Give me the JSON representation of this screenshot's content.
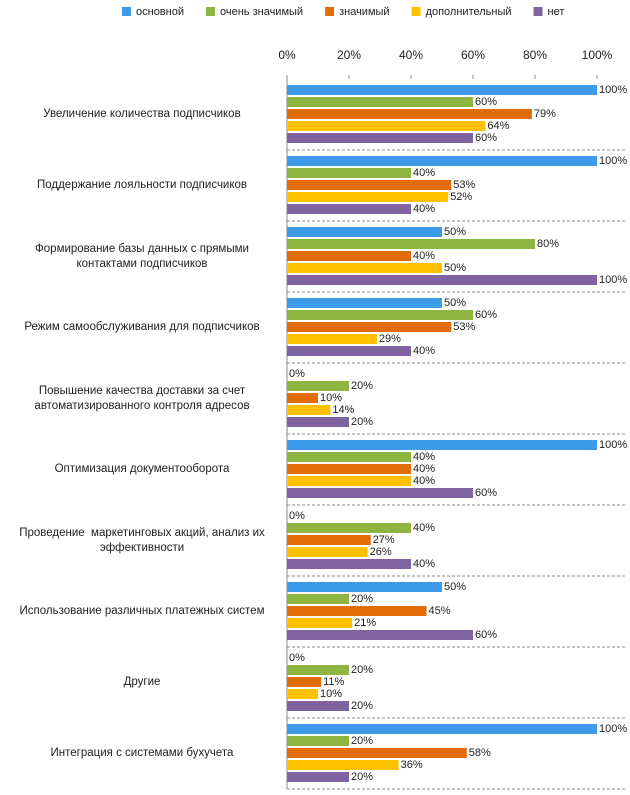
{
  "chart_data": {
    "type": "bar",
    "orientation": "horizontal",
    "categories": [
      "Увеличение количества подписчиков",
      "Поддержание лояльности подписчиков",
      "Формирование базы данных с прямыми контактами подписчиков",
      "Режим самообслуживания для подписчиков",
      "Повышение качества доставки за счет автоматизированного контроля адресов",
      "Оптимизация документооборота",
      "Проведение  маркетинговых акций, анализ их эффективности",
      "Использование различных платежных систем",
      "Другие",
      "Интеграция с системами бухучета"
    ],
    "series": [
      {
        "name": "основной",
        "color": "#3e9be9",
        "values": [
          100,
          100,
          50,
          50,
          0,
          100,
          0,
          50,
          0,
          100
        ],
        "value_labels": [
          "100%",
          "100%",
          "50%",
          "50%",
          "0%",
          "100%",
          "0%",
          "50%",
          "0%",
          "100%"
        ]
      },
      {
        "name": "очень значимый",
        "color": "#8db53f",
        "values": [
          60,
          40,
          80,
          60,
          20,
          40,
          40,
          20,
          20,
          20
        ],
        "value_labels": [
          "60%",
          "40%",
          "80%",
          "60%",
          "20%",
          "40%",
          "40%",
          "20%",
          "20%",
          "20%"
        ]
      },
      {
        "name": "значимый",
        "color": "#e36c0a",
        "values": [
          79,
          53,
          40,
          53,
          10,
          40,
          27,
          45,
          11,
          58
        ],
        "value_labels": [
          "79%",
          "53%",
          "40%",
          "53%",
          "10%",
          "40%",
          "27%",
          "45%",
          "11%",
          "58%"
        ]
      },
      {
        "name": "дополнительный",
        "color": "#ffc000",
        "values": [
          64,
          52,
          50,
          29,
          14,
          40,
          26,
          21,
          10,
          36
        ],
        "value_labels": [
          "64%",
          "52%",
          "50%",
          "29%",
          "14%",
          "40%",
          "26%",
          "21%",
          "10%",
          "36%"
        ]
      },
      {
        "name": "нет",
        "color": "#8064a2",
        "values": [
          60,
          40,
          100,
          40,
          20,
          60,
          40,
          60,
          20,
          20
        ],
        "value_labels": [
          "60%",
          "40%",
          "100%",
          "40%",
          "20%",
          "60%",
          "40%",
          "60%",
          "20%",
          "20%"
        ]
      }
    ],
    "xlim": [
      0,
      100
    ],
    "xticks": [
      {
        "value": 0,
        "label": "0%"
      },
      {
        "value": 20,
        "label": "20%"
      },
      {
        "value": 40,
        "label": "40%"
      },
      {
        "value": 60,
        "label": "60%"
      },
      {
        "value": 80,
        "label": "80%"
      },
      {
        "value": 100,
        "label": "100%"
      }
    ],
    "legend": "top"
  }
}
